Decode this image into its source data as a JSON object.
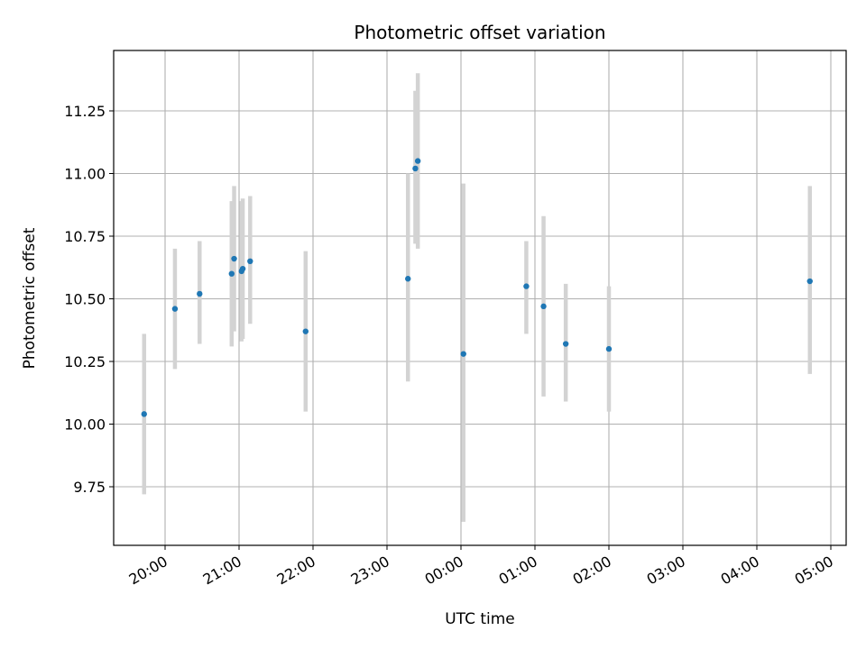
{
  "chart_data": {
    "type": "scatter",
    "title": "Photometric offset variation",
    "xlabel": "UTC time",
    "ylabel": "Photometric offset",
    "x_tick_labels": [
      "20:00",
      "21:00",
      "22:00",
      "23:00",
      "00:00",
      "01:00",
      "02:00",
      "03:00",
      "04:00",
      "05:00"
    ],
    "y_tick_labels": [
      "9.75",
      "10.00",
      "10.25",
      "10.50",
      "10.75",
      "11.00",
      "11.25"
    ],
    "ylim": [
      9.52,
      11.5
    ],
    "grid": true,
    "colors": {
      "point": "#1f77b4",
      "errorbar": "#d3d3d3",
      "grid": "#b0b0b0"
    },
    "points": [
      {
        "x": "19:43",
        "y": 10.04,
        "y_low": 9.72,
        "y_high": 10.36
      },
      {
        "x": "20:08",
        "y": 10.46,
        "y_low": 10.22,
        "y_high": 10.7
      },
      {
        "x": "20:28",
        "y": 10.52,
        "y_low": 10.32,
        "y_high": 10.73
      },
      {
        "x": "20:54",
        "y": 10.6,
        "y_low": 10.31,
        "y_high": 10.89
      },
      {
        "x": "20:56",
        "y": 10.66,
        "y_low": 10.37,
        "y_high": 10.95
      },
      {
        "x": "21:02",
        "y": 10.61,
        "y_low": 10.33,
        "y_high": 10.89
      },
      {
        "x": "21:03",
        "y": 10.62,
        "y_low": 10.34,
        "y_high": 10.9
      },
      {
        "x": "21:09",
        "y": 10.65,
        "y_low": 10.4,
        "y_high": 10.91
      },
      {
        "x": "21:54",
        "y": 10.37,
        "y_low": 10.05,
        "y_high": 10.69
      },
      {
        "x": "23:17",
        "y": 10.58,
        "y_low": 10.17,
        "y_high": 11.0
      },
      {
        "x": "23:23",
        "y": 11.02,
        "y_low": 10.72,
        "y_high": 11.33
      },
      {
        "x": "23:25",
        "y": 11.05,
        "y_low": 10.7,
        "y_high": 11.4
      },
      {
        "x": "00:02",
        "y": 10.28,
        "y_low": 9.61,
        "y_high": 10.96
      },
      {
        "x": "00:53",
        "y": 10.55,
        "y_low": 10.36,
        "y_high": 10.73
      },
      {
        "x": "01:07",
        "y": 10.47,
        "y_low": 10.11,
        "y_high": 10.83
      },
      {
        "x": "01:25",
        "y": 10.32,
        "y_low": 10.09,
        "y_high": 10.56
      },
      {
        "x": "02:00",
        "y": 10.3,
        "y_low": 10.05,
        "y_high": 10.55
      },
      {
        "x": "04:43",
        "y": 10.57,
        "y_low": 10.2,
        "y_high": 10.95
      }
    ]
  }
}
